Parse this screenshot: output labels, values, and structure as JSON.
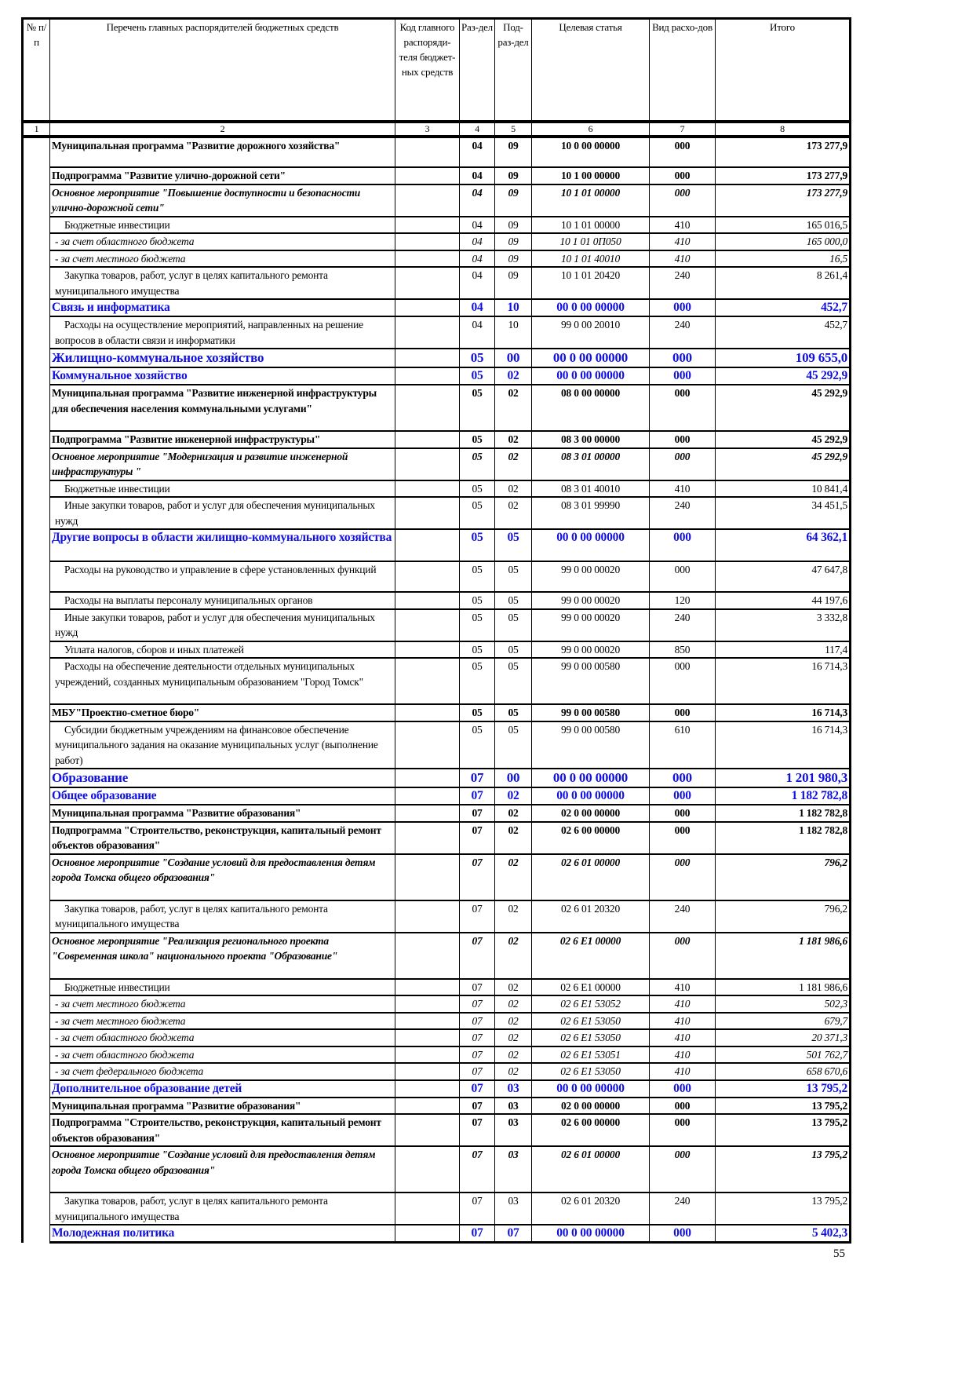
{
  "header": {
    "columns": [
      "№ п/п",
      "Перечень главных распорядителей бюджетных средств",
      "Код главного распоряди-теля бюджет-ных средств",
      "Раз-дел",
      "Под-раз-дел",
      "Целевая статья",
      "Вид расхо-дов",
      "Итого"
    ],
    "numbers": [
      "1",
      "2",
      "3",
      "4",
      "5",
      "6",
      "7",
      "8"
    ]
  },
  "rows": [
    {
      "level": "program",
      "name": "Муниципальная программа \"Развитие дорожного хозяйства\"",
      "code": "",
      "razdel": "04",
      "podrazdel": "09",
      "article": "10 0 00 00000",
      "vid": "000",
      "total": "173 277,9"
    },
    {
      "level": "sub",
      "name": "Подпрограмма \"Развитие улично-дорожной сети\"",
      "code": "",
      "razdel": "04",
      "podrazdel": "09",
      "article": "10 1 00 00000",
      "vid": "000",
      "total": "173 277,9"
    },
    {
      "level": "event",
      "name": "Основное мероприятие \"Повышение доступности и безопасности улично-дорожной сети\"",
      "code": "",
      "razdel": "04",
      "podrazdel": "09",
      "article": "10 1 01 00000",
      "vid": "000",
      "total": "173 277,9"
    },
    {
      "level": "normal",
      "name": "Бюджетные инвестиции",
      "code": "",
      "razdel": "04",
      "podrazdel": "09",
      "article": "10 1 01 00000",
      "vid": "410",
      "total": "165 016,5"
    },
    {
      "level": "italic",
      "name": "- за счет областного бюджета",
      "code": "",
      "razdel": "04",
      "podrazdel": "09",
      "article": "10 1 01 0П050",
      "vid": "410",
      "total": "165 000,0"
    },
    {
      "level": "italic",
      "name": "- за счет местного бюджета",
      "code": "",
      "razdel": "04",
      "podrazdel": "09",
      "article": "10 1 01 40010",
      "vid": "410",
      "total": "16,5"
    },
    {
      "level": "normal",
      "name": "Закупка товаров, работ, услуг в целях капитального ремонта муниципального имущества",
      "code": "",
      "razdel": "04",
      "podrazdel": "09",
      "article": "10 1 01 20420",
      "vid": "240",
      "total": "8 261,4"
    },
    {
      "level": "subsection",
      "name": "Связь и информатика",
      "code": "",
      "razdel": "04",
      "podrazdel": "10",
      "article": "00 0 00 00000",
      "vid": "000",
      "total": "452,7"
    },
    {
      "level": "normal",
      "name": "Расходы на осуществление мероприятий, направленных на решение вопросов в области связи и информатики",
      "code": "",
      "razdel": "04",
      "podrazdel": "10",
      "article": "99 0 00 20010",
      "vid": "240",
      "total": "452,7"
    },
    {
      "level": "section",
      "name": "Жилищно-коммунальное хозяйство",
      "code": "",
      "razdel": "05",
      "podrazdel": "00",
      "article": "00 0 00 00000",
      "vid": "000",
      "total": "109 655,0"
    },
    {
      "level": "subsection",
      "name": "Коммунальное хозяйство",
      "code": "",
      "razdel": "05",
      "podrazdel": "02",
      "article": "00 0 00 00000",
      "vid": "000",
      "total": "45 292,9"
    },
    {
      "level": "program",
      "name": "Муниципальная программа \"Развитие инженерной инфраструктуры для обеспечения населения коммунальными услугами\"",
      "code": "",
      "razdel": "05",
      "podrazdel": "02",
      "article": "08 0 00 00000",
      "vid": "000",
      "total": "45 292,9"
    },
    {
      "level": "sub",
      "name": "Подпрограмма \"Развитие инженерной инфраструктуры\"",
      "code": "",
      "razdel": "05",
      "podrazdel": "02",
      "article": "08 3 00 00000",
      "vid": "000",
      "total": "45 292,9"
    },
    {
      "level": "event",
      "name": "Основное мероприятие \"Модернизация и развитие инженерной инфраструктуры \"",
      "code": "",
      "razdel": "05",
      "podrazdel": "02",
      "article": "08 3 01 00000",
      "vid": "000",
      "total": "45 292,9"
    },
    {
      "level": "normal",
      "name": "Бюджетные инвестиции",
      "code": "",
      "razdel": "05",
      "podrazdel": "02",
      "article": "08 3 01 40010",
      "vid": "410",
      "total": "10 841,4"
    },
    {
      "level": "normal",
      "name": "Иные закупки товаров, работ и услуг для обеспечения муниципальных нужд",
      "code": "",
      "razdel": "05",
      "podrazdel": "02",
      "article": "08 3 01 99990",
      "vid": "240",
      "total": "34 451,5"
    },
    {
      "level": "subsection",
      "name": "Другие вопросы в области жилищно-коммунального хозяйства",
      "code": "",
      "razdel": "05",
      "podrazdel": "05",
      "article": "00 0 00 00000",
      "vid": "000",
      "total": "64 362,1"
    },
    {
      "level": "normal",
      "name": "Расходы на руководство и управление в сфере установленных функций",
      "code": "",
      "razdel": "05",
      "podrazdel": "05",
      "article": "99 0 00 00020",
      "vid": "000",
      "total": "47 647,8"
    },
    {
      "level": "normal",
      "name": "Расходы на выплаты персоналу муниципальных органов",
      "code": "",
      "razdel": "05",
      "podrazdel": "05",
      "article": "99 0 00 00020",
      "vid": "120",
      "total": "44 197,6"
    },
    {
      "level": "normal",
      "name": "Иные закупки товаров, работ и услуг для обеспечения муниципальных нужд",
      "code": "",
      "razdel": "05",
      "podrazdel": "05",
      "article": "99 0 00 00020",
      "vid": "240",
      "total": "3 332,8"
    },
    {
      "level": "normal",
      "name": "Уплата налогов, сборов и иных платежей",
      "code": "",
      "razdel": "05",
      "podrazdel": "05",
      "article": "99 0 00 00020",
      "vid": "850",
      "total": "117,4"
    },
    {
      "level": "normal",
      "name": "Расходы на обеспечение деятельности отдельных муниципальных учреждений, созданных муниципальным образованием \"Город Томск\"",
      "code": "",
      "razdel": "05",
      "podrazdel": "05",
      "article": "99 0 00 00580",
      "vid": "000",
      "total": "16 714,3"
    },
    {
      "level": "sub",
      "name": "МБУ\"Проектно-сметное бюро\"",
      "code": "",
      "razdel": "05",
      "podrazdel": "05",
      "article": "99 0 00 00580",
      "vid": "000",
      "total": "16 714,3"
    },
    {
      "level": "normal",
      "name": "Субсидии бюджетным учреждениям на финансовое обеспечение муниципального задания на оказание муниципальных услуг (выполнение работ)",
      "code": "",
      "razdel": "05",
      "podrazdel": "05",
      "article": "99 0 00 00580",
      "vid": "610",
      "total": "16 714,3"
    },
    {
      "level": "section",
      "name": "Образование",
      "code": "",
      "razdel": "07",
      "podrazdel": "00",
      "article": "00 0 00 00000",
      "vid": "000",
      "total": "1 201 980,3"
    },
    {
      "level": "subsection",
      "name": "Общее образование",
      "code": "",
      "razdel": "07",
      "podrazdel": "02",
      "article": "00 0 00 00000",
      "vid": "000",
      "total": "1 182 782,8"
    },
    {
      "level": "program",
      "name": "Муниципальная программа \"Развитие образования\"",
      "code": "",
      "razdel": "07",
      "podrazdel": "02",
      "article": "02 0 00 00000",
      "vid": "000",
      "total": "1 182 782,8"
    },
    {
      "level": "sub",
      "name": "Подпрограмма \"Строительство, реконструкция, капитальный ремонт объектов образования\"",
      "code": "",
      "razdel": "07",
      "podrazdel": "02",
      "article": "02 6 00 00000",
      "vid": "000",
      "total": "1 182 782,8"
    },
    {
      "level": "event",
      "name": "Основное мероприятие \"Создание условий для предоставления детям города Томска общего образования\"",
      "code": "",
      "razdel": "07",
      "podrazdel": "02",
      "article": "02 6 01 00000",
      "vid": "000",
      "total": "796,2"
    },
    {
      "level": "normal",
      "name": "Закупка товаров, работ, услуг в целях капитального ремонта муниципального имущества",
      "code": "",
      "razdel": "07",
      "podrazdel": "02",
      "article": "02 6 01 20320",
      "vid": "240",
      "total": "796,2"
    },
    {
      "level": "event",
      "name": "Основное мероприятие \"Реализация регионального проекта \"Современная школа\" национального проекта \"Образование\"",
      "code": "",
      "razdel": "07",
      "podrazdel": "02",
      "article": "02 6 E1 00000",
      "vid": "000",
      "total": "1 181 986,6"
    },
    {
      "level": "normal",
      "name": "Бюджетные инвестиции",
      "code": "",
      "razdel": "07",
      "podrazdel": "02",
      "article": "02 6 E1 00000",
      "vid": "410",
      "total": "1 181 986,6"
    },
    {
      "level": "italic",
      "name": "- за счет местного бюджета",
      "code": "",
      "razdel": "07",
      "podrazdel": "02",
      "article": "02 6 E1 53052",
      "vid": "410",
      "total": "502,3"
    },
    {
      "level": "italic",
      "name": "- за счет местного бюджета",
      "code": "",
      "razdel": "07",
      "podrazdel": "02",
      "article": "02 6 E1 53050",
      "vid": "410",
      "total": "679,7"
    },
    {
      "level": "italic",
      "name": "- за счет областного бюджета",
      "code": "",
      "razdel": "07",
      "podrazdel": "02",
      "article": "02 6 E1 53050",
      "vid": "410",
      "total": "20 371,3"
    },
    {
      "level": "italic",
      "name": "- за счет областного бюджета",
      "code": "",
      "razdel": "07",
      "podrazdel": "02",
      "article": "02 6 E1 53051",
      "vid": "410",
      "total": "501 762,7"
    },
    {
      "level": "italic",
      "name": "- за счет федерального бюджета",
      "code": "",
      "razdel": "07",
      "podrazdel": "02",
      "article": "02 6 E1 53050",
      "vid": "410",
      "total": "658 670,6"
    },
    {
      "level": "subsection",
      "name": "Дополнительное образование детей",
      "code": "",
      "razdel": "07",
      "podrazdel": "03",
      "article": "00 0 00 00000",
      "vid": "000",
      "total": "13 795,2"
    },
    {
      "level": "program",
      "name": "Муниципальная программа \"Развитие образования\"",
      "code": "",
      "razdel": "07",
      "podrazdel": "03",
      "article": "02 0 00 00000",
      "vid": "000",
      "total": "13 795,2"
    },
    {
      "level": "sub",
      "name": "Подпрограмма \"Строительство, реконструкция, капитальный ремонт объектов образования\"",
      "code": "",
      "razdel": "07",
      "podrazdel": "03",
      "article": "02 6 00 00000",
      "vid": "000",
      "total": "13 795,2"
    },
    {
      "level": "event",
      "name": "Основное мероприятие \"Создание условий для предоставления детям города Томска общего образования\"",
      "code": "",
      "razdel": "07",
      "podrazdel": "03",
      "article": "02 6 01 00000",
      "vid": "000",
      "total": "13 795,2"
    },
    {
      "level": "normal",
      "name": "Закупка товаров, работ, услуг в целях капитального ремонта муниципального имущества",
      "code": "",
      "razdel": "07",
      "podrazdel": "03",
      "article": "02 6 01 20320",
      "vid": "240",
      "total": "13 795,2"
    },
    {
      "level": "subsection",
      "name": "Молодежная политика",
      "code": "",
      "razdel": "07",
      "podrazdel": "07",
      "article": "00 0 00 00000",
      "vid": "000",
      "total": "5 402,3"
    }
  ],
  "page_number": "55"
}
